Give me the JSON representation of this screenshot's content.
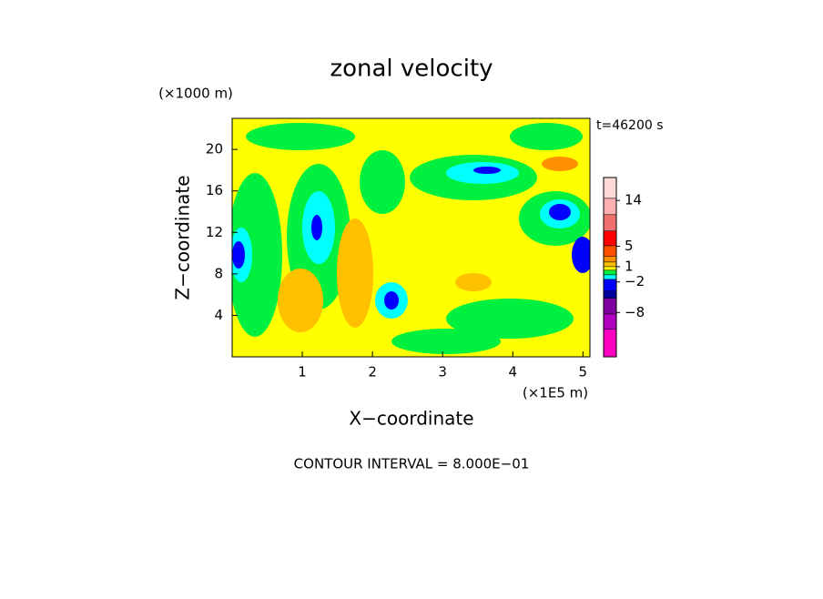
{
  "chart_data": {
    "type": "contour",
    "title": "zonal velocity",
    "x_label": "X−coordinate",
    "y_label": "Z−coordinate",
    "x_unit": "(×1E5 m)",
    "y_unit": "(×1000 m)",
    "time_label": "t=46200 s",
    "footer": "CONTOUR INTERVAL = 8.000E−01",
    "xlim": [
      0,
      5.1
    ],
    "xticks": [
      1,
      2,
      3,
      4,
      5
    ],
    "ylim": [
      0,
      23
    ],
    "yticks": [
      4,
      8,
      12,
      16,
      20
    ],
    "background_color": "#ffff00",
    "colorbar": {
      "lim": [
        -16.7,
        18.5
      ],
      "bounds": [
        18.5,
        14.4,
        11.2,
        8,
        5.1,
        3,
        1.9,
        1,
        0.3,
        -0.6,
        -1.5,
        -3.8,
        -5.2,
        -8.3,
        -11.3,
        -16.7
      ],
      "colors": [
        "#ffd8d8",
        "#ffb0b0",
        "#f07070",
        "#ff0000",
        "#ff5000",
        "#ff9000",
        "#ffc000",
        "#ffff00",
        "#00f040",
        "#00ffff",
        "#0000ff",
        "#0000a0",
        "#8000a0",
        "#b000c0",
        "#ff00c0"
      ],
      "ticks": [
        14,
        5,
        1,
        {
          "value": -2,
          "label": "−2"
        },
        {
          "value": -8,
          "label": "−8"
        }
      ]
    }
  }
}
